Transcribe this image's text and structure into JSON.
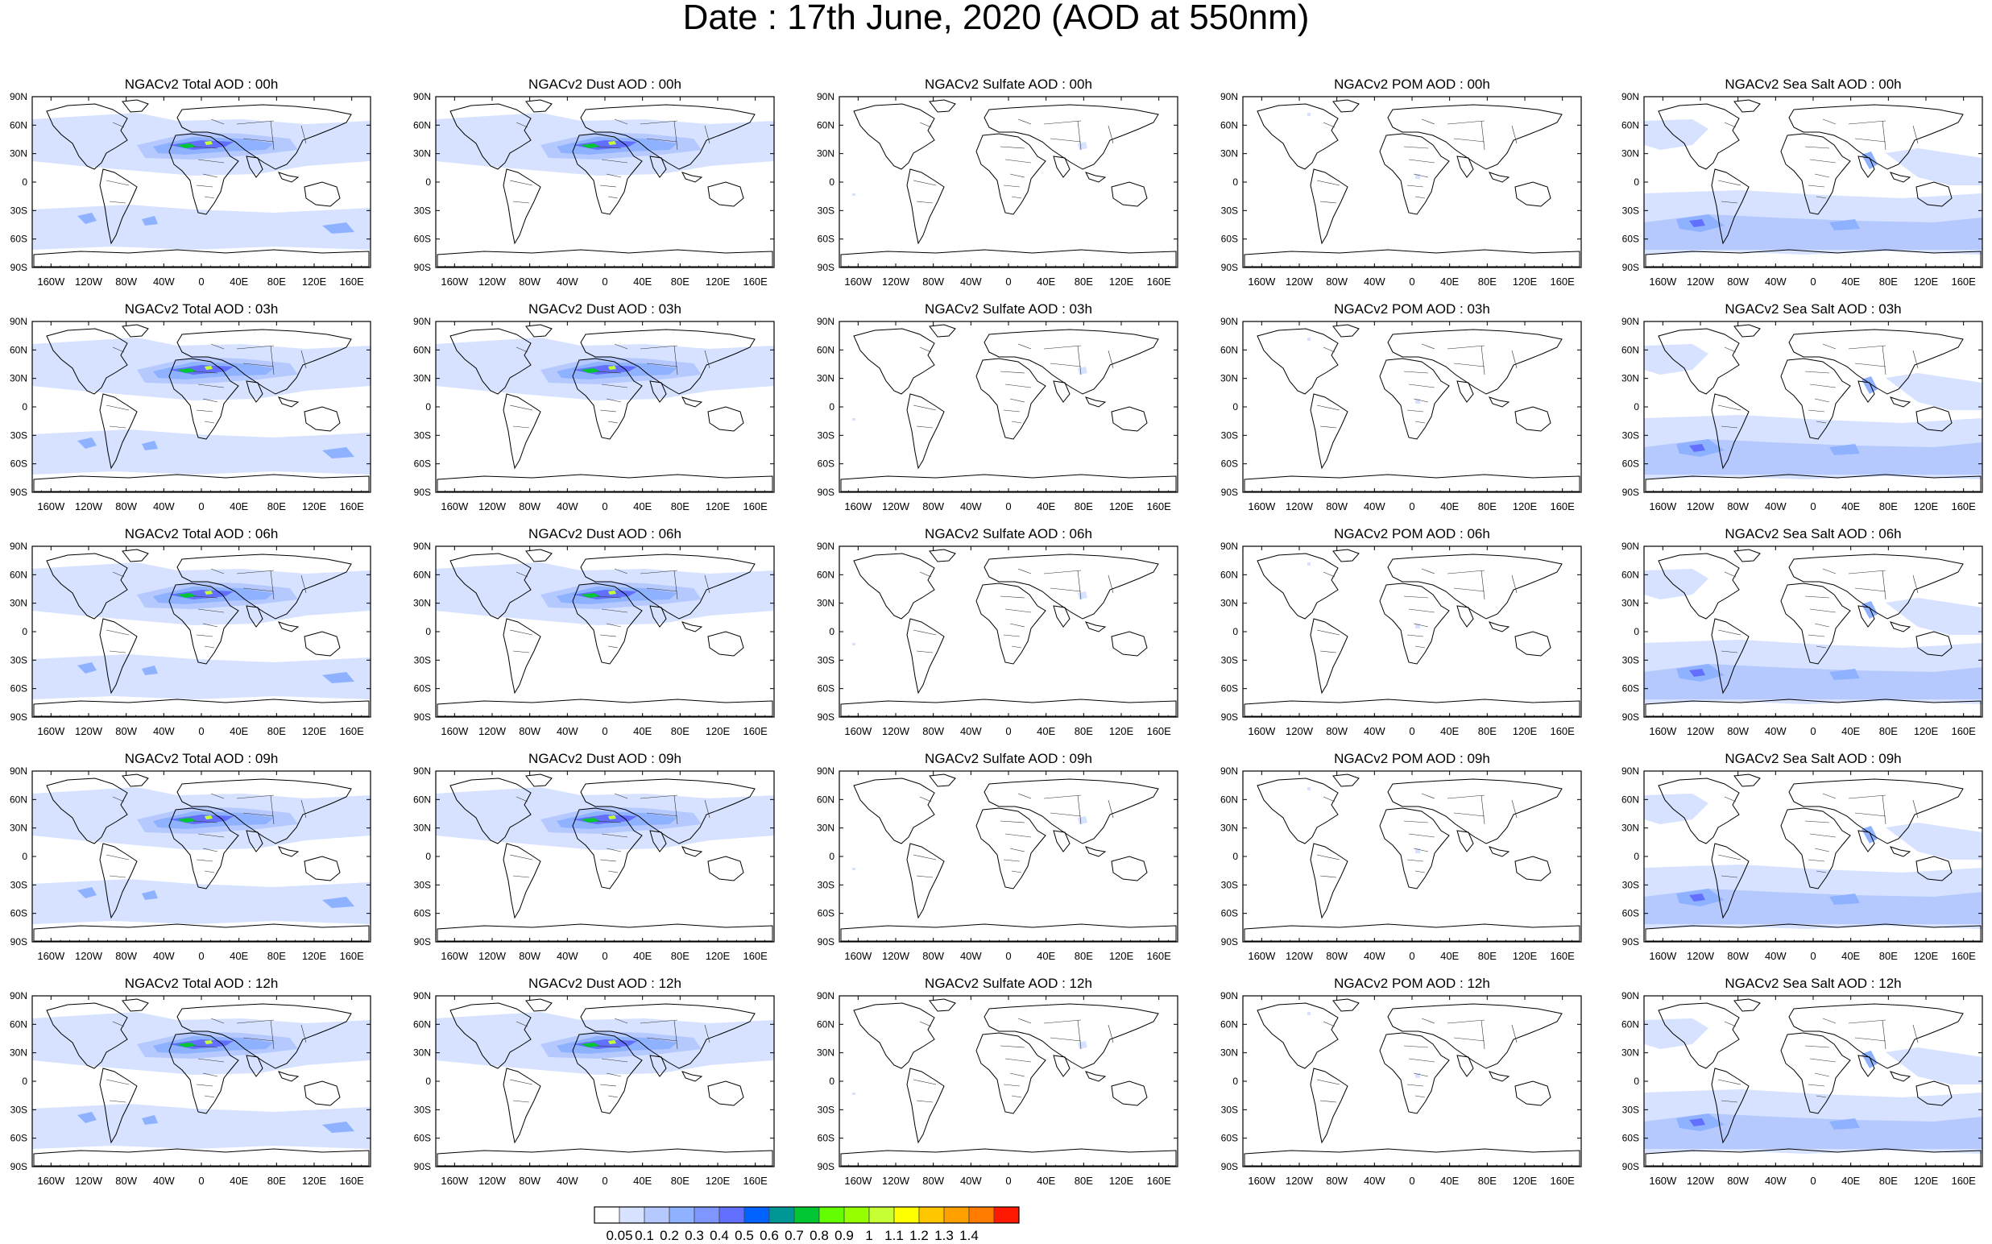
{
  "title": "Date : 17th June, 2020 (AOD at 550nm)",
  "panels": [
    [
      {
        "title": "NGACv2 Total AOD : 00h",
        "type": "total"
      },
      {
        "title": "NGACv2 Dust AOD : 00h",
        "type": "dust"
      },
      {
        "title": "NGACv2 Sulfate AOD : 00h",
        "type": "sulfate"
      },
      {
        "title": "NGACv2 POM AOD : 00h",
        "type": "pom"
      },
      {
        "title": "NGACv2 Sea Salt AOD : 00h",
        "type": "seasalt"
      }
    ],
    [
      {
        "title": "NGACv2 Total AOD : 03h",
        "type": "total"
      },
      {
        "title": "NGACv2 Dust AOD : 03h",
        "type": "dust"
      },
      {
        "title": "NGACv2 Sulfate AOD : 03h",
        "type": "sulfate"
      },
      {
        "title": "NGACv2 POM AOD : 03h",
        "type": "pom"
      },
      {
        "title": "NGACv2 Sea Salt AOD : 03h",
        "type": "seasalt"
      }
    ],
    [
      {
        "title": "NGACv2 Total AOD : 06h",
        "type": "total"
      },
      {
        "title": "NGACv2 Dust AOD : 06h",
        "type": "dust"
      },
      {
        "title": "NGACv2 Sulfate AOD : 06h",
        "type": "sulfate"
      },
      {
        "title": "NGACv2 POM AOD : 06h",
        "type": "pom"
      },
      {
        "title": "NGACv2 Sea Salt AOD : 06h",
        "type": "seasalt"
      }
    ],
    [
      {
        "title": "NGACv2 Total AOD : 09h",
        "type": "total"
      },
      {
        "title": "NGACv2 Dust AOD : 09h",
        "type": "dust"
      },
      {
        "title": "NGACv2 Sulfate AOD : 09h",
        "type": "sulfate"
      },
      {
        "title": "NGACv2 POM AOD : 09h",
        "type": "pom"
      },
      {
        "title": "NGACv2 Sea Salt  AOD : 09h",
        "type": "seasalt"
      }
    ],
    [
      {
        "title": "NGACv2 Total AOD  : 12h",
        "type": "total"
      },
      {
        "title": "NGACv2 Dust AOD : 12h",
        "type": "dust"
      },
      {
        "title": "NGACv2 Sulfate AOD : 12h",
        "type": "sulfate"
      },
      {
        "title": "NGACv2 POM  AOD : 12h",
        "type": "pom"
      },
      {
        "title": "NGACv2 Sea Salt  AOD : 12h",
        "type": "seasalt"
      }
    ]
  ],
  "lat_ticks": [
    "90N",
    "60N",
    "30N",
    "0",
    "30S",
    "60S",
    "90S"
  ],
  "lon_ticks": [
    "160W",
    "120W",
    "80W",
    "40W",
    "0",
    "40E",
    "80E",
    "120E",
    "160E"
  ],
  "colorbar": {
    "labels": [
      "0.05",
      "0.1",
      "0.2",
      "0.3",
      "0.4",
      "0.5",
      "0.6",
      "0.7",
      "0.8",
      "0.9",
      "1",
      "1.1",
      "1.2",
      "1.3",
      "1.4"
    ],
    "colors": [
      "#ffffff",
      "#d6e2ff",
      "#b5c9ff",
      "#8eb2ff",
      "#7f96ff",
      "#6370ff",
      "#0063ff",
      "#009696",
      "#00c633",
      "#63ff00",
      "#96ff00",
      "#c6ff33",
      "#ffff00",
      "#ffc600",
      "#ffa000",
      "#ff7c00",
      "#ff1900"
    ]
  }
}
